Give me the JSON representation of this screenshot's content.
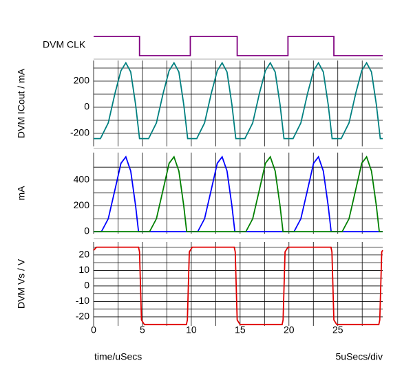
{
  "chart_data": [
    {
      "type": "step",
      "ylabel": "DVM CLK",
      "color": "#800080",
      "xlim": [
        0,
        29.6
      ],
      "ylim": [
        0,
        1
      ],
      "grid": false,
      "series": [
        {
          "color": "#800080",
          "x": [
            0,
            4.7,
            4.7,
            9.9,
            9.9,
            14.7,
            14.7,
            19.9,
            19.9,
            24.6,
            24.6,
            29.6
          ],
          "values": [
            1,
            1,
            0,
            0,
            1,
            1,
            0,
            0,
            1,
            1,
            0,
            0
          ]
        }
      ]
    },
    {
      "type": "line",
      "ylabel": "DVM ICout / mA",
      "xlim": [
        0,
        29.6
      ],
      "ylim": [
        -300,
        358
      ],
      "grid": true,
      "yticks": [
        200,
        0,
        -200
      ],
      "ygrid": [
        300,
        200,
        100,
        0,
        -100,
        -200
      ],
      "xgrid": [
        0,
        2.5,
        5,
        7.5,
        10,
        12.5,
        15,
        17.5,
        20,
        22.5,
        25,
        27.5
      ],
      "series": [
        {
          "color": "#008080",
          "x": [
            0,
            0.7,
            1.5,
            2.2,
            2.8,
            3.3,
            3.8,
            4.3,
            4.7,
            4.93,
            5.63,
            6.43,
            7.13,
            7.73,
            8.23,
            8.73,
            9.23,
            9.63,
            9.86,
            10.56,
            11.36,
            12.06,
            12.66,
            13.16,
            13.66,
            14.16,
            14.56,
            14.79,
            15.49,
            16.29,
            16.99,
            17.59,
            18.09,
            18.59,
            19.09,
            19.49,
            19.72,
            20.42,
            21.22,
            21.92,
            22.52,
            23.02,
            23.52,
            24.02,
            24.42,
            24.65,
            25.35,
            26.15,
            26.85,
            27.45,
            27.95,
            28.45,
            28.95,
            29.35,
            29.6
          ],
          "values": [
            -240,
            -240,
            -120,
            110,
            280,
            340,
            270,
            20,
            -240,
            -240,
            -240,
            -120,
            110,
            280,
            340,
            270,
            20,
            -240,
            -240,
            -240,
            -120,
            110,
            280,
            340,
            270,
            20,
            -240,
            -240,
            -240,
            -120,
            110,
            280,
            340,
            270,
            20,
            -240,
            -240,
            -240,
            -120,
            110,
            280,
            340,
            270,
            20,
            -240,
            -240,
            -240,
            -120,
            110,
            280,
            340,
            270,
            20,
            -240,
            -240
          ]
        }
      ]
    },
    {
      "type": "line",
      "ylabel": "mA",
      "xlim": [
        0,
        29.6
      ],
      "ylim": [
        -16,
        613
      ],
      "grid": true,
      "yticks": [
        400,
        200,
        0
      ],
      "ygrid": [
        500,
        400,
        300,
        200,
        100,
        0
      ],
      "xgrid": [
        0,
        2.5,
        5,
        7.5,
        10,
        12.5,
        15,
        17.5,
        20,
        22.5,
        25,
        27.5
      ],
      "series": [
        {
          "color": "#0000ff",
          "x": [
            0,
            0.8,
            1.5,
            2.2,
            2.8,
            3.3,
            3.8,
            4.3,
            4.6,
            10.66,
            11.36,
            12.06,
            12.66,
            13.16,
            13.66,
            14.16,
            14.46,
            20.52,
            21.22,
            21.92,
            22.52,
            23.02,
            23.52,
            24.02,
            24.32,
            29.6
          ],
          "values": [
            0,
            0,
            100,
            330,
            530,
            580,
            470,
            200,
            0,
            0,
            100,
            330,
            530,
            580,
            470,
            200,
            0,
            0,
            100,
            330,
            530,
            580,
            470,
            200,
            0,
            0
          ]
        },
        {
          "color": "#008000",
          "x": [
            0,
            5.73,
            6.43,
            7.13,
            7.73,
            8.23,
            8.73,
            9.23,
            9.53,
            15.59,
            16.29,
            16.99,
            17.59,
            18.09,
            18.59,
            19.09,
            19.39,
            25.45,
            26.15,
            26.85,
            27.45,
            27.95,
            28.45,
            28.95,
            29.25,
            29.6
          ],
          "values": [
            0,
            0,
            100,
            330,
            530,
            580,
            470,
            200,
            0,
            0,
            100,
            330,
            530,
            580,
            470,
            200,
            0,
            0,
            100,
            330,
            530,
            580,
            470,
            200,
            0,
            0
          ]
        }
      ]
    },
    {
      "type": "line",
      "ylabel": "DVM Vs / V",
      "xlabel": "time/uSecs",
      "xnote": "5uSecs/div",
      "xlim": [
        0,
        29.6
      ],
      "ylim": [
        -25.8,
        28.4
      ],
      "grid": true,
      "yticks": [
        20,
        10,
        0,
        -10,
        -20
      ],
      "ygrid": [
        25,
        20,
        15,
        10,
        5,
        0,
        -5,
        -10,
        -15,
        -20
      ],
      "xticks": [
        0,
        5,
        10,
        15,
        20,
        25
      ],
      "xgrid": [
        0,
        2.5,
        5,
        7.5,
        10,
        12.5,
        15,
        17.5,
        20,
        22.5,
        25,
        27.5
      ],
      "series": [
        {
          "color": "#e00000",
          "x": [
            0,
            0.3,
            4.6,
            4.7,
            4.9,
            5.2,
            9.5,
            9.6,
            9.8,
            10.1,
            14.4,
            14.5,
            14.7,
            15.0,
            19.3,
            19.4,
            19.6,
            19.9,
            24.3,
            24.4,
            24.6,
            24.9,
            29.2,
            29.3,
            29.5,
            29.6
          ],
          "values": [
            23,
            25,
            25,
            22,
            -22,
            -25,
            -25,
            -22,
            22,
            25,
            25,
            22,
            -22,
            -25,
            -25,
            -22,
            22,
            25,
            25,
            22,
            -22,
            -25,
            -25,
            -22,
            22,
            23
          ]
        }
      ]
    }
  ]
}
